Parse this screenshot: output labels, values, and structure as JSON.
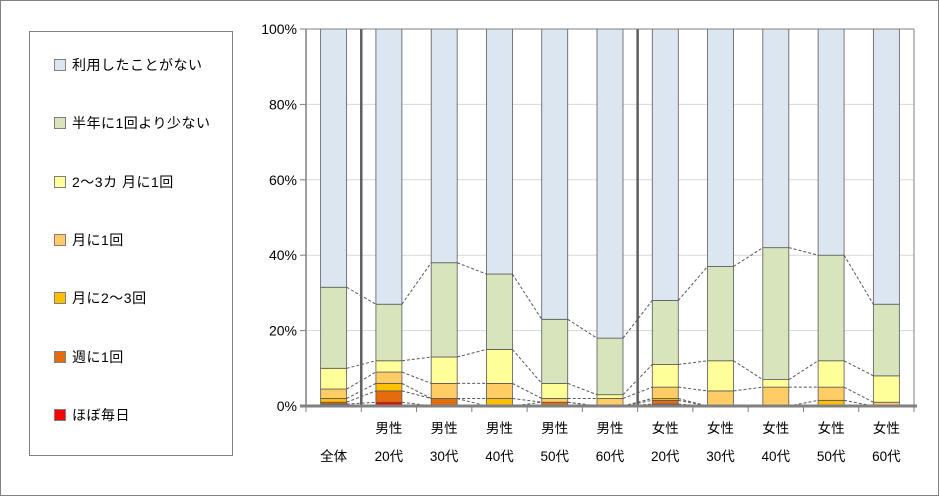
{
  "chart_data": {
    "type": "bar",
    "subtype": "stacked-100-percent-column",
    "title": "",
    "xlabel": "",
    "ylabel": "",
    "ylim": [
      0,
      100
    ],
    "y_ticks": [
      "0%",
      "20%",
      "40%",
      "60%",
      "80%",
      "100%"
    ],
    "grid": true,
    "legend_position": "left",
    "group_separators_after": [
      0,
      5
    ],
    "categories": [
      {
        "top": "",
        "bottom": "全体"
      },
      {
        "top": "男性",
        "bottom": "20代"
      },
      {
        "top": "男性",
        "bottom": "30代"
      },
      {
        "top": "男性",
        "bottom": "40代"
      },
      {
        "top": "男性",
        "bottom": "50代"
      },
      {
        "top": "男性",
        "bottom": "60代"
      },
      {
        "top": "女性",
        "bottom": "20代"
      },
      {
        "top": "女性",
        "bottom": "30代"
      },
      {
        "top": "女性",
        "bottom": "40代"
      },
      {
        "top": "女性",
        "bottom": "50代"
      },
      {
        "top": "女性",
        "bottom": "60代"
      }
    ],
    "series": [
      {
        "name": "ほぼ毎日",
        "color": "#ff0000",
        "values": [
          0.5,
          1,
          0,
          0,
          0,
          0,
          0.5,
          0,
          0,
          0,
          0
        ]
      },
      {
        "name": "週に1回",
        "color": "#e46c0a",
        "values": [
          0.5,
          3,
          2,
          0,
          1,
          0,
          1,
          0,
          0,
          0,
          0
        ]
      },
      {
        "name": "月に2～3回",
        "color": "#ffc000",
        "values": [
          1,
          2,
          0,
          2,
          0,
          0,
          0.5,
          0,
          0,
          1.5,
          0
        ]
      },
      {
        "name": "月に1回",
        "color": "#ffcc66",
        "values": [
          2.5,
          3,
          4,
          4,
          1,
          2,
          3,
          4,
          5,
          3.5,
          1
        ]
      },
      {
        "name": "2～3カ 月に1回",
        "color": "#ffff99",
        "values": [
          5.5,
          3,
          7,
          9,
          4,
          1,
          6,
          8,
          2,
          7,
          7
        ]
      },
      {
        "name": "半年に1回より少ない",
        "color": "#d7e4bc",
        "values": [
          21.5,
          15,
          25,
          20,
          17,
          15,
          17,
          25,
          35,
          28,
          19
        ]
      },
      {
        "name": "利用したことがない",
        "color": "#dce6f1",
        "values": [
          68.5,
          73,
          62,
          65,
          77,
          82,
          72,
          63,
          58,
          60,
          73
        ]
      }
    ]
  },
  "legend": {
    "items": [
      {
        "label": "利用したことがない",
        "color": "#dce6f1"
      },
      {
        "label": "半年に1回より少ない",
        "color": "#d7e4bc"
      },
      {
        "label": "2～3カ 月に1回",
        "color": "#ffff99"
      },
      {
        "label": "月に1回",
        "color": "#ffcc66"
      },
      {
        "label": "月に2～3回",
        "color": "#ffc000"
      },
      {
        "label": "週に1回",
        "color": "#e46c0a"
      },
      {
        "label": "ほぼ毎日",
        "color": "#ff0000"
      }
    ]
  },
  "style": {
    "grid_color": "#d9d9d9",
    "frame_color": "#808080",
    "segment_border_color": "#595959",
    "connector_color": "#595959",
    "separator_color": "#5f5f5f",
    "text_color": "#000000"
  }
}
